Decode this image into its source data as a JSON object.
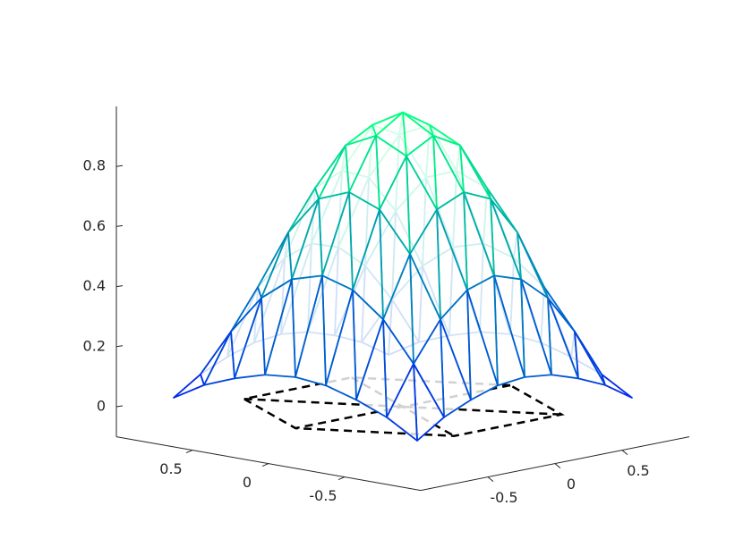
{
  "chart_data": {
    "type": "surface3d",
    "xlim": [
      -1,
      1
    ],
    "ylim": [
      -1,
      1
    ],
    "zlim": [
      -0.1,
      1
    ],
    "xticks": [
      -0.5,
      0,
      0.5
    ],
    "yticks": [
      -0.5,
      0,
      0.5
    ],
    "zticks": [
      0,
      0.2,
      0.4,
      0.6,
      0.8
    ],
    "colormap": [
      "#0000ff",
      "#00ff80"
    ],
    "surface": {
      "x": [
        -0.8,
        -0.6,
        -0.4,
        -0.2,
        0,
        0.2,
        0.4,
        0.6,
        0.8
      ],
      "y": [
        -0.8,
        -0.6,
        -0.4,
        -0.2,
        0,
        0.2,
        0.4,
        0.6,
        0.8
      ],
      "z": [
        [
          0.03,
          0.09,
          0.13,
          0.16,
          0.17,
          0.16,
          0.13,
          0.09,
          0.03
        ],
        [
          0.09,
          0.25,
          0.38,
          0.46,
          0.49,
          0.46,
          0.38,
          0.25,
          0.09
        ],
        [
          0.13,
          0.38,
          0.58,
          0.71,
          0.75,
          0.71,
          0.58,
          0.38,
          0.13
        ],
        [
          0.16,
          0.46,
          0.71,
          0.87,
          0.92,
          0.87,
          0.71,
          0.46,
          0.16
        ],
        [
          0.17,
          0.49,
          0.75,
          0.92,
          0.98,
          0.92,
          0.75,
          0.49,
          0.17
        ],
        [
          0.16,
          0.46,
          0.71,
          0.87,
          0.92,
          0.87,
          0.71,
          0.46,
          0.16
        ],
        [
          0.13,
          0.38,
          0.58,
          0.71,
          0.75,
          0.71,
          0.58,
          0.38,
          0.13
        ],
        [
          0.09,
          0.25,
          0.38,
          0.46,
          0.49,
          0.46,
          0.38,
          0.25,
          0.09
        ],
        [
          0.03,
          0.09,
          0.13,
          0.16,
          0.17,
          0.16,
          0.13,
          0.09,
          0.03
        ]
      ]
    },
    "base": {
      "x": [
        0.8,
        0.4,
        -0.4,
        -0.8,
        -0.4,
        0.4
      ],
      "y": [
        0,
        0.69,
        0.69,
        0,
        -0.69,
        -0.69
      ],
      "color": "#000000"
    }
  }
}
